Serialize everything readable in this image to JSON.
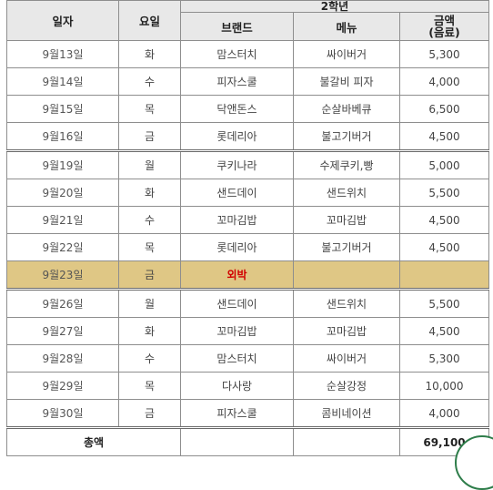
{
  "header": {
    "date": "일자",
    "weekday": "요일",
    "group": "2학년",
    "brand": "브랜드",
    "menu": "메뉴",
    "amount": "금액\n(음료)"
  },
  "rows": [
    {
      "date": "9월13일",
      "weekday": "화",
      "brand": "맘스터치",
      "menu": "싸이버거",
      "amount": "5,300"
    },
    {
      "date": "9월14일",
      "weekday": "수",
      "brand": "피자스쿨",
      "menu": "불갈비 피자",
      "amount": "4,000"
    },
    {
      "date": "9월15일",
      "weekday": "목",
      "brand": "닥앤돈스",
      "menu": "순살바베큐",
      "amount": "6,500"
    },
    {
      "date": "9월16일",
      "weekday": "금",
      "brand": "롯데리아",
      "menu": "불고기버거",
      "amount": "4,500"
    },
    {
      "date": "9월19일",
      "weekday": "월",
      "brand": "쿠키나라",
      "menu": "수제쿠키,빵",
      "amount": "5,000"
    },
    {
      "date": "9월20일",
      "weekday": "화",
      "brand": "샌드데이",
      "menu": "샌드위치",
      "amount": "5,500"
    },
    {
      "date": "9월21일",
      "weekday": "수",
      "brand": "꼬마김밥",
      "menu": "꼬마김밥",
      "amount": "4,500"
    },
    {
      "date": "9월22일",
      "weekday": "목",
      "brand": "롯데리아",
      "menu": "불고기버거",
      "amount": "4,500"
    },
    {
      "date": "9월23일",
      "weekday": "금",
      "brand": "외박",
      "menu": "",
      "amount": ""
    },
    {
      "date": "9월26일",
      "weekday": "월",
      "brand": "샌드데이",
      "menu": "샌드위치",
      "amount": "5,500"
    },
    {
      "date": "9월27일",
      "weekday": "화",
      "brand": "꼬마김밥",
      "menu": "꼬마김밥",
      "amount": "4,500"
    },
    {
      "date": "9월28일",
      "weekday": "수",
      "brand": "맘스터치",
      "menu": "싸이버거",
      "amount": "5,300"
    },
    {
      "date": "9월29일",
      "weekday": "목",
      "brand": "다사랑",
      "menu": "순살강정",
      "amount": "10,000"
    },
    {
      "date": "9월30일",
      "weekday": "금",
      "brand": "피자스쿨",
      "menu": "콤비네이션",
      "amount": "4,000"
    }
  ],
  "total": {
    "label": "총액",
    "amount": "69,100"
  },
  "colors": {
    "highlight_row": "#dfc785",
    "outing_text": "#d10000",
    "header_bg": "#e8e8e8"
  }
}
